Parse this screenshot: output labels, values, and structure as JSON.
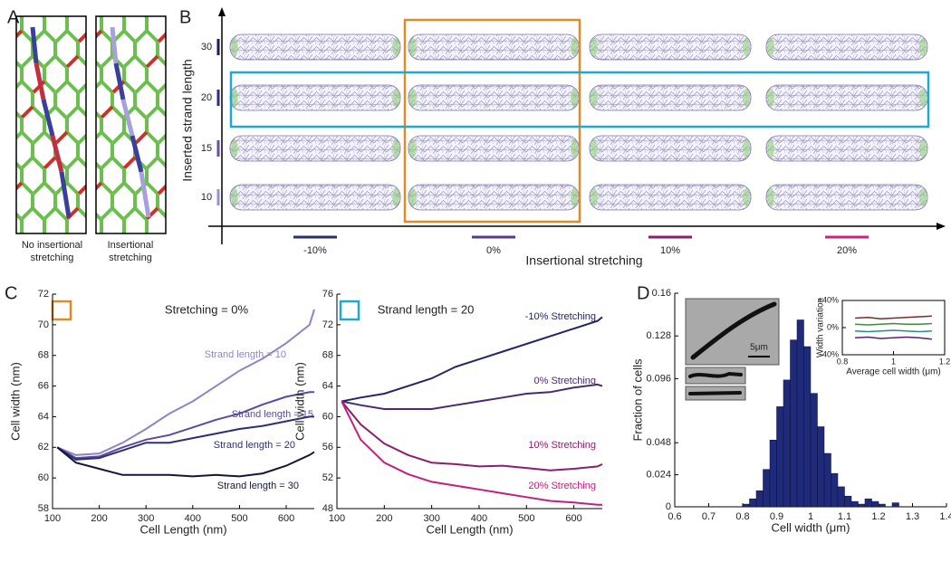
{
  "panel_labels": [
    "A",
    "B",
    "C",
    "D"
  ],
  "panel_a": {
    "captions": [
      "No insertional stretching",
      "Insertional stretching"
    ]
  },
  "panel_b": {
    "ylabel": "Inserted strand length",
    "xlabel": "Insertional stretching",
    "rows": [
      {
        "label": "30",
        "color": "#1c1f4a"
      },
      {
        "label": "20",
        "color": "#2e2f7a"
      },
      {
        "label": "15",
        "color": "#6a4fa0"
      },
      {
        "label": "10",
        "color": "#9a8fd0"
      }
    ],
    "columns": [
      {
        "label": "-10%",
        "color": "#2a2d6e"
      },
      {
        "label": "0%",
        "color": "#5a3a8c"
      },
      {
        "label": "10%",
        "color": "#8a1f6b"
      },
      {
        "label": "20%",
        "color": "#d0207a"
      }
    ]
  },
  "chart_data": [
    {
      "type": "line",
      "title": "Stretching = 0%",
      "xlabel": "Cell Length (nm)",
      "ylabel": "Cell width (nm)",
      "x": [
        110,
        150,
        200,
        250,
        300,
        350,
        400,
        450,
        500,
        550,
        600,
        650,
        660
      ],
      "xlim": [
        100,
        660
      ],
      "xticks": [
        100,
        200,
        300,
        400,
        500,
        600
      ],
      "ylim": [
        58,
        72
      ],
      "yticks": [
        58,
        60,
        62,
        64,
        66,
        68,
        70,
        72
      ],
      "series": [
        {
          "name": "Strand length = 10",
          "color": "#8f84c8",
          "values": [
            62,
            61.5,
            61.6,
            62.3,
            63.2,
            64.2,
            65,
            66,
            67,
            67.8,
            68.8,
            70,
            71
          ]
        },
        {
          "name": "Strand length = 15",
          "color": "#5b4a9e",
          "values": [
            62,
            61.3,
            61.4,
            62,
            62.5,
            62.8,
            63.3,
            63.8,
            64.2,
            64.8,
            65.3,
            65.6,
            65.6
          ]
        },
        {
          "name": "Strand length = 20",
          "color": "#2e3070",
          "values": [
            62,
            61.2,
            61.3,
            61.8,
            62.3,
            62.3,
            62.6,
            62.9,
            63.2,
            63.4,
            63.7,
            64,
            64
          ]
        },
        {
          "name": "Strand length = 30",
          "color": "#141838",
          "values": [
            62,
            61,
            60.6,
            60.2,
            60.2,
            60.2,
            60.1,
            60.2,
            60.1,
            60.3,
            60.8,
            61.5,
            61.7
          ]
        }
      ]
    },
    {
      "type": "line",
      "title": "Strand length = 20",
      "xlabel": "Cell Length (nm)",
      "ylabel": "Cell width (nm)",
      "x": [
        110,
        150,
        200,
        250,
        300,
        350,
        400,
        450,
        500,
        550,
        600,
        650,
        660
      ],
      "xlim": [
        100,
        660
      ],
      "xticks": [
        100,
        200,
        300,
        400,
        500,
        600
      ],
      "ylim": [
        48,
        76
      ],
      "yticks": [
        48,
        52,
        56,
        60,
        64,
        68,
        72,
        76
      ],
      "series": [
        {
          "name": "-10% Stretching",
          "color": "#22285f",
          "values": [
            62,
            62.5,
            63,
            64,
            65,
            66.5,
            67.5,
            68.5,
            69.5,
            70.5,
            71.5,
            72.5,
            73
          ]
        },
        {
          "name": "0% Stretching",
          "color": "#4a2a6e",
          "values": [
            62,
            61.5,
            61,
            61,
            61,
            61.5,
            62,
            62.5,
            63,
            63.2,
            63.8,
            64.2,
            64
          ]
        },
        {
          "name": "10% Stretching",
          "color": "#8a1f6b",
          "values": [
            62,
            59,
            56.5,
            55,
            54,
            53.8,
            53.5,
            53.6,
            53.3,
            53,
            53.2,
            53.5,
            53.8
          ]
        },
        {
          "name": "20% Stretching",
          "color": "#c2207a",
          "values": [
            62,
            57,
            54,
            52.5,
            51.5,
            51,
            50.5,
            50,
            49.5,
            49,
            48.8,
            48.5,
            48.5
          ]
        }
      ]
    },
    {
      "type": "histogram",
      "xlabel": "Cell width (μm)",
      "ylabel": "Fraction of cells",
      "color": "#1f2a78",
      "bins": [
        0.8,
        0.82,
        0.84,
        0.86,
        0.88,
        0.9,
        0.92,
        0.94,
        0.96,
        0.98,
        1.0,
        1.02,
        1.04,
        1.06,
        1.08,
        1.1,
        1.12,
        1.14,
        1.16,
        1.18,
        1.2,
        1.22,
        1.24,
        1.26,
        1.28
      ],
      "values": [
        0.002,
        0.006,
        0.012,
        0.028,
        0.05,
        0.075,
        0.095,
        0.125,
        0.14,
        0.12,
        0.085,
        0.06,
        0.04,
        0.025,
        0.015,
        0.008,
        0.004,
        0.002,
        0.006,
        0.004,
        0.002,
        0,
        0.003,
        0
      ],
      "xlim": [
        0.6,
        1.4
      ],
      "xticks": [
        0.6,
        0.7,
        0.8,
        0.9,
        1,
        1.1,
        1.2,
        1.3,
        1.4
      ],
      "ylim": [
        0,
        0.16
      ],
      "yticks": [
        0,
        0.024,
        0.048,
        0.096,
        0.128,
        0.16
      ],
      "scale_bar": "5μm",
      "inset": {
        "type": "line",
        "xlabel": "Average cell width (μm)",
        "ylabel": "Width variation",
        "x": [
          0.85,
          0.9,
          0.95,
          1,
          1.05,
          1.1,
          1.15
        ],
        "xlim": [
          0.8,
          1.2
        ],
        "xticks": [
          0.8,
          1,
          1.2
        ],
        "ylim": [
          -40,
          40
        ],
        "yticks": [
          {
            "value": 40,
            "label": "+40%"
          },
          {
            "value": 0,
            "label": "0%"
          },
          {
            "value": -40,
            "label": "-40%"
          }
        ],
        "series": [
          {
            "color": "#7a2a2a",
            "values": [
              14,
              15,
              13,
              14,
              15,
              16,
              17
            ]
          },
          {
            "color": "#3f8a3f",
            "values": [
              5,
              4,
              5,
              6,
              5,
              5,
              6
            ]
          },
          {
            "color": "#2a8a8a",
            "values": [
              -5,
              -6,
              -5,
              -4,
              -5,
              -6,
              -5
            ]
          },
          {
            "color": "#5a1f6b",
            "values": [
              -15,
              -14,
              -16,
              -15,
              -14,
              -15,
              -17
            ]
          }
        ]
      }
    }
  ]
}
